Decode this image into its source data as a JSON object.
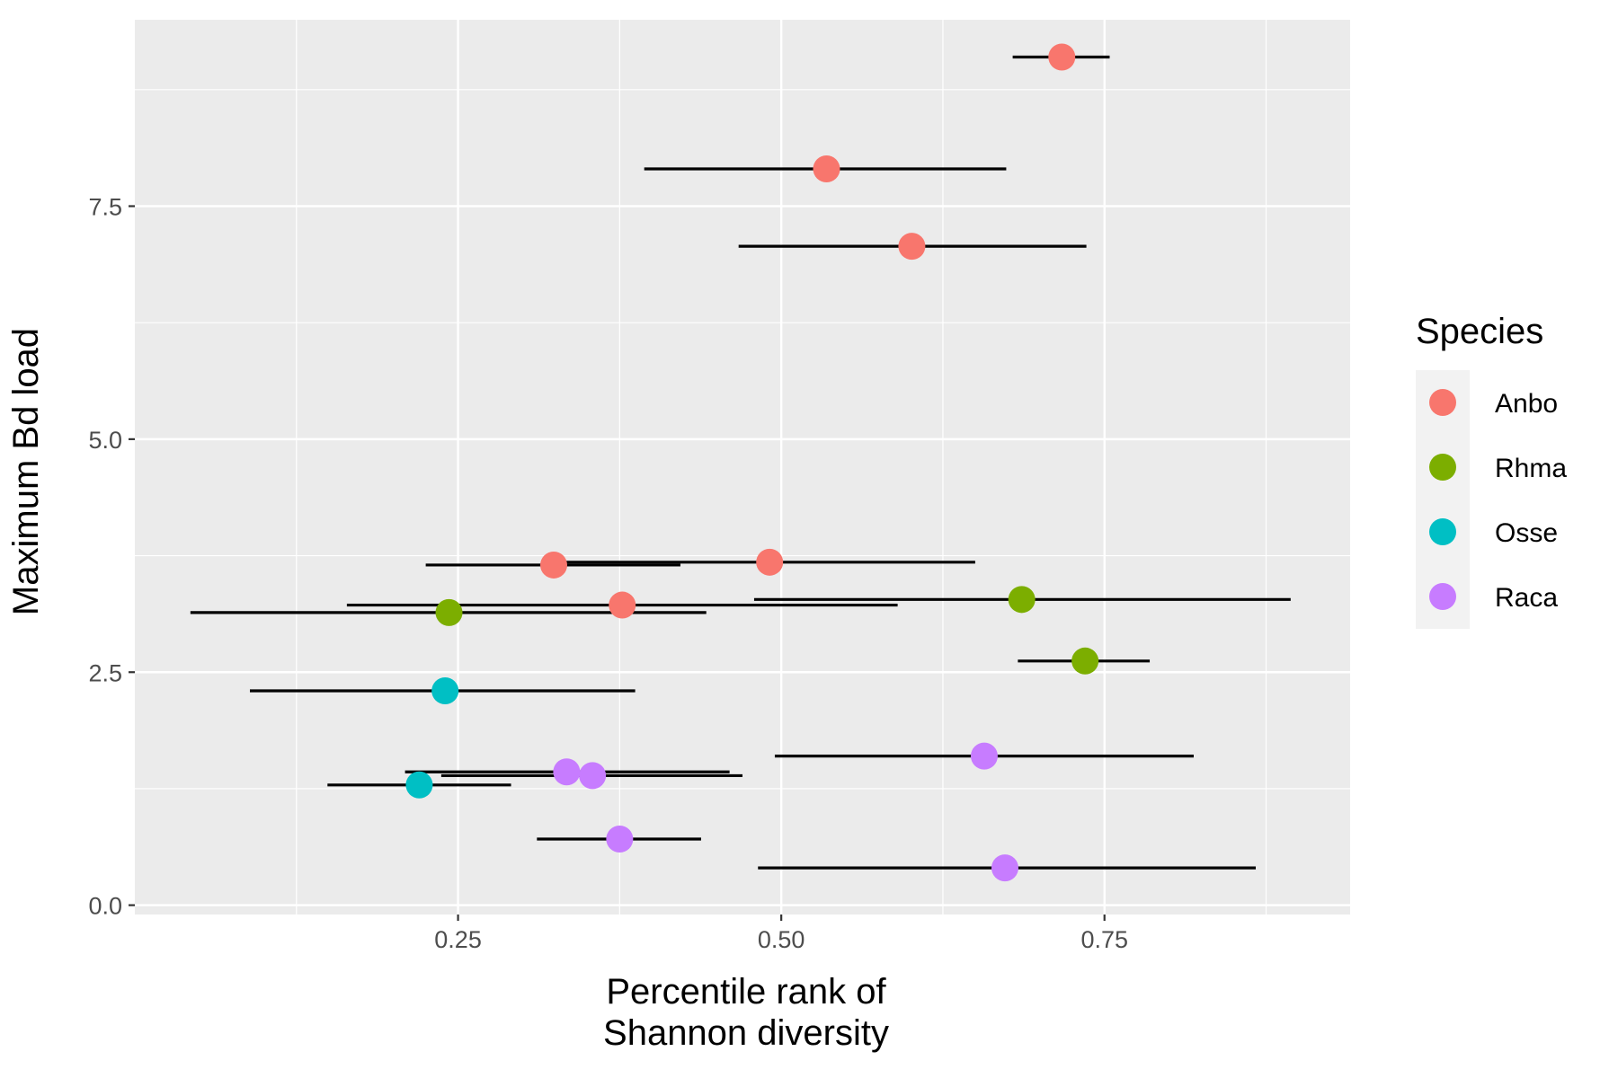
{
  "chart_data": {
    "type": "scatter",
    "xlabel_lines": [
      "Percentile rank of",
      "Shannon diversity"
    ],
    "ylabel": "Maximum Bd load",
    "xlim": [
      0.0,
      0.94
    ],
    "ylim": [
      -0.1,
      9.5
    ],
    "x_ticks": [
      0.25,
      0.5,
      0.75
    ],
    "x_tick_labels": [
      "0.25",
      "0.50",
      "0.75"
    ],
    "x_minor": [
      0.125,
      0.375,
      0.625,
      0.875
    ],
    "y_ticks": [
      0.0,
      2.5,
      5.0,
      7.5
    ],
    "y_tick_labels": [
      "0.0",
      "2.5",
      "5.0",
      "7.5"
    ],
    "y_minor": [
      1.25,
      3.75,
      6.25,
      8.75
    ],
    "grid": true,
    "legend": {
      "title": "Species",
      "position": "right",
      "entries": [
        {
          "name": "Anbo",
          "color": "#F8766D"
        },
        {
          "name": "Rhma",
          "color": "#7CAE00"
        },
        {
          "name": "Osse",
          "color": "#00BFC4"
        },
        {
          "name": "Raca",
          "color": "#C77CFF"
        }
      ]
    },
    "series": [
      {
        "name": "Anbo",
        "color": "#F8766D",
        "points": [
          {
            "x": 0.717,
            "y": 9.1,
            "xmin": 0.679,
            "xmax": 0.754
          },
          {
            "x": 0.535,
            "y": 7.9,
            "xmin": 0.394,
            "xmax": 0.674
          },
          {
            "x": 0.601,
            "y": 7.07,
            "xmin": 0.467,
            "xmax": 0.736
          },
          {
            "x": 0.324,
            "y": 3.65,
            "xmin": 0.225,
            "xmax": 0.422
          },
          {
            "x": 0.491,
            "y": 3.68,
            "xmin": 0.328,
            "xmax": 0.65
          },
          {
            "x": 0.377,
            "y": 3.22,
            "xmin": 0.164,
            "xmax": 0.59
          }
        ]
      },
      {
        "name": "Rhma",
        "color": "#7CAE00",
        "points": [
          {
            "x": 0.243,
            "y": 3.14,
            "xmin": 0.043,
            "xmax": 0.442
          },
          {
            "x": 0.686,
            "y": 3.28,
            "xmin": 0.479,
            "xmax": 0.894
          },
          {
            "x": 0.735,
            "y": 2.62,
            "xmin": 0.683,
            "xmax": 0.785
          }
        ]
      },
      {
        "name": "Osse",
        "color": "#00BFC4",
        "points": [
          {
            "x": 0.24,
            "y": 2.3,
            "xmin": 0.089,
            "xmax": 0.387
          },
          {
            "x": 0.22,
            "y": 1.29,
            "xmin": 0.149,
            "xmax": 0.291
          }
        ]
      },
      {
        "name": "Raca",
        "color": "#C77CFF",
        "points": [
          {
            "x": 0.657,
            "y": 1.6,
            "xmin": 0.495,
            "xmax": 0.819
          },
          {
            "x": 0.334,
            "y": 1.43,
            "xmin": 0.209,
            "xmax": 0.46
          },
          {
            "x": 0.354,
            "y": 1.39,
            "xmin": 0.237,
            "xmax": 0.47
          },
          {
            "x": 0.375,
            "y": 0.71,
            "xmin": 0.311,
            "xmax": 0.438
          },
          {
            "x": 0.673,
            "y": 0.4,
            "xmin": 0.482,
            "xmax": 0.867
          }
        ]
      }
    ]
  }
}
